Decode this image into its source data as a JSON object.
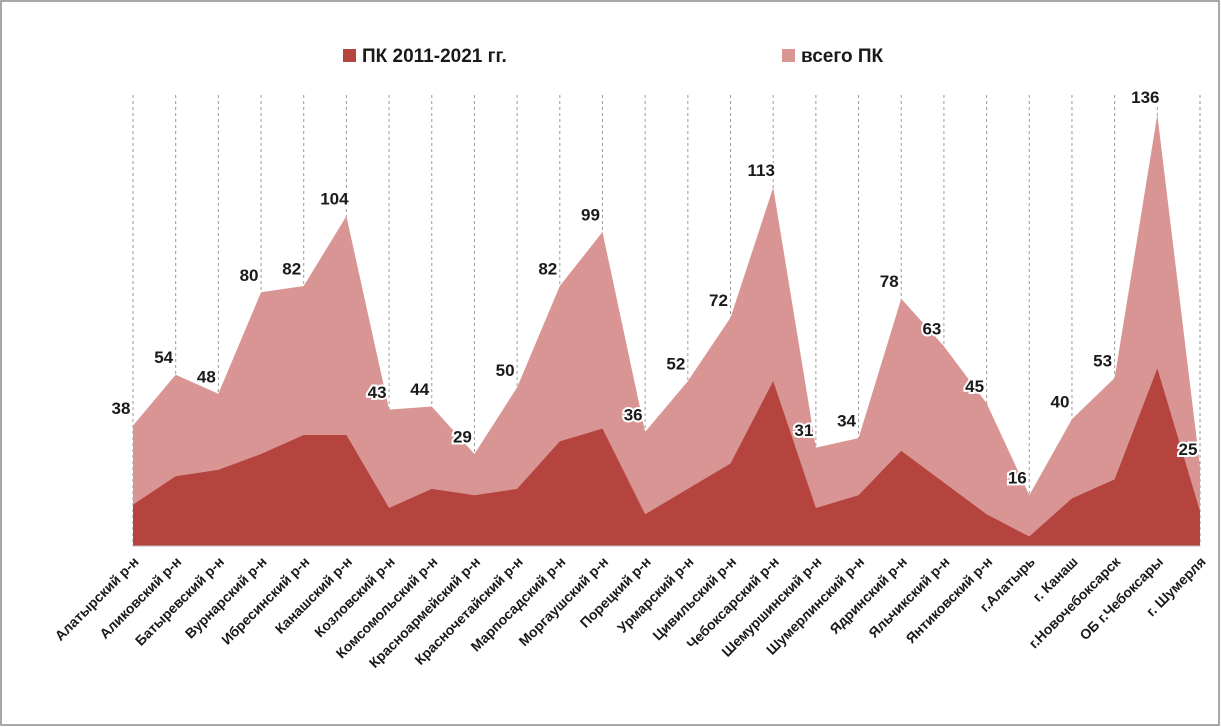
{
  "chart_data": {
    "type": "area",
    "categories": [
      "Алатырский р-н",
      "Аликовский р-н",
      "Батыревский р-н",
      "Вурнарский р-н",
      "Ибресинский р-н",
      "Канашский р-н",
      "Козловский р-н",
      "Комсомольский р-н",
      "Красноармейский р-н",
      "Красночетайский р-н",
      "Марпосадский р-н",
      "Моргаушский р-н",
      "Порецкий р-н",
      "Урмарский р-н",
      "Цивильский р-н",
      "Чебоксарский р-н",
      "Шемуршинский р-н",
      "Шумерлинский р-н",
      "Ядринский р-н",
      "Яльчикский р-н",
      "Янтиковский р-н",
      "г.Алатырь",
      "г. Канаш",
      "г.Новочебоксарск",
      "ОБ г.Чебоксары",
      "г. Шумерля"
    ],
    "series": [
      {
        "name": "ПК 2011-2021 гг.",
        "color": "#b5443f",
        "values": [
          13,
          22,
          24,
          29,
          35,
          35,
          12,
          18,
          16,
          18,
          33,
          37,
          10,
          18,
          26,
          52,
          12,
          16,
          30,
          20,
          10,
          3,
          15,
          21,
          56,
          11
        ]
      },
      {
        "name": "всего ПК",
        "color": "#d99594",
        "values": [
          38,
          54,
          48,
          80,
          82,
          104,
          43,
          44,
          29,
          50,
          82,
          99,
          36,
          52,
          72,
          113,
          31,
          34,
          78,
          63,
          45,
          16,
          40,
          53,
          136,
          25
        ]
      }
    ],
    "ylim": [
      0,
      140
    ],
    "grid": true,
    "legend": "top"
  }
}
